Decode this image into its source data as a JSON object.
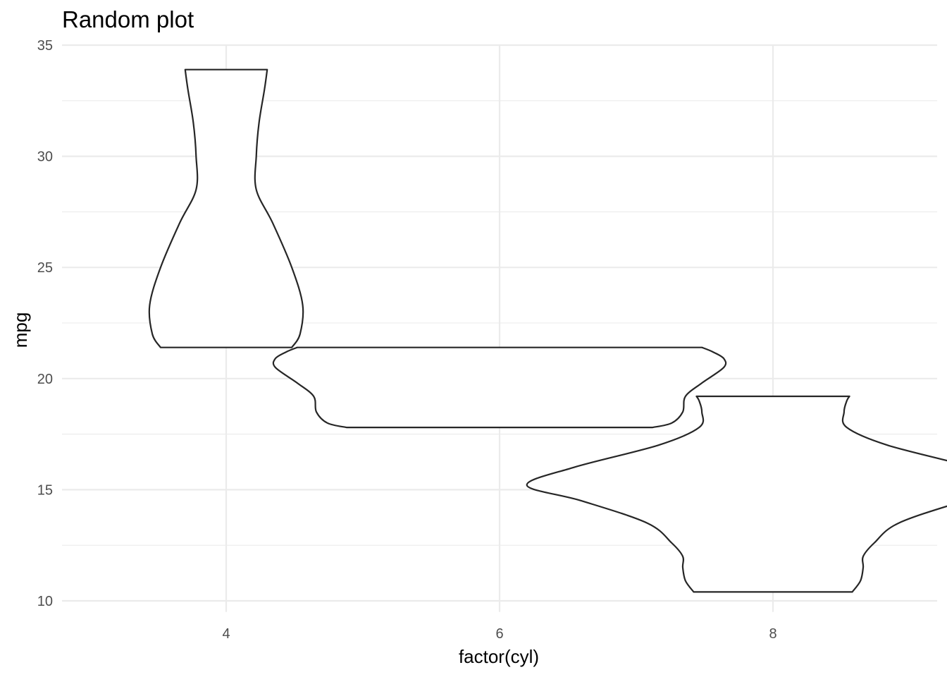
{
  "chart_data": {
    "type": "violin",
    "title": "Random plot",
    "xlabel": "factor(cyl)",
    "ylabel": "mpg",
    "categories": [
      "4",
      "6",
      "8"
    ],
    "ylim": [
      9.1,
      35.0
    ],
    "yticks": [
      10,
      15,
      20,
      25,
      30,
      35
    ],
    "yminor": [
      12.5,
      17.5,
      22.5,
      27.5,
      32.5
    ],
    "grid": true,
    "violins": [
      {
        "category": "4",
        "min": 21.4,
        "max": 33.9,
        "profile": [
          [
            21.4,
            0.24
          ],
          [
            22.0,
            0.27
          ],
          [
            23.3,
            0.28
          ],
          [
            25.0,
            0.24
          ],
          [
            27.0,
            0.17
          ],
          [
            28.5,
            0.11
          ],
          [
            30.0,
            0.11
          ],
          [
            31.5,
            0.12
          ],
          [
            33.0,
            0.14
          ],
          [
            33.9,
            0.15
          ]
        ]
      },
      {
        "category": "6",
        "min": 17.8,
        "max": 21.4,
        "profile": [
          [
            17.8,
            0.56
          ],
          [
            18.0,
            0.63
          ],
          [
            18.5,
            0.67
          ],
          [
            19.2,
            0.68
          ],
          [
            19.8,
            0.74
          ],
          [
            20.5,
            0.82
          ],
          [
            20.9,
            0.82
          ],
          [
            21.2,
            0.78
          ],
          [
            21.4,
            0.74
          ]
        ]
      },
      {
        "category": "8",
        "min": 10.4,
        "max": 19.2,
        "profile": [
          [
            10.4,
            0.29
          ],
          [
            10.9,
            0.32
          ],
          [
            11.5,
            0.33
          ],
          [
            12.0,
            0.33
          ],
          [
            12.6,
            0.37
          ],
          [
            13.5,
            0.46
          ],
          [
            14.5,
            0.7
          ],
          [
            15.2,
            0.9
          ],
          [
            16.0,
            0.73
          ],
          [
            17.0,
            0.42
          ],
          [
            17.8,
            0.27
          ],
          [
            18.5,
            0.26
          ],
          [
            19.0,
            0.27
          ],
          [
            19.2,
            0.28
          ]
        ]
      }
    ]
  }
}
